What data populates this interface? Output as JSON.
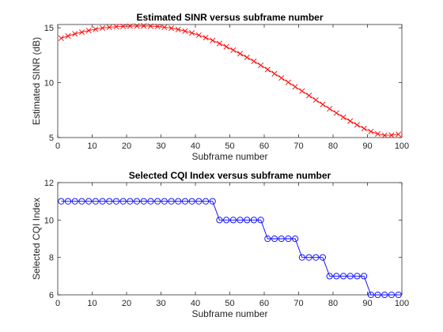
{
  "chart_data": [
    {
      "type": "line",
      "title": "Estimated SINR versus subframe number",
      "xlabel": "Subframe number",
      "ylabel": "Estimated SINR (dB)",
      "xlim": [
        0,
        100
      ],
      "ylim": [
        5,
        15.3
      ],
      "xticks": [
        0,
        10,
        20,
        30,
        40,
        50,
        60,
        70,
        80,
        90,
        100
      ],
      "yticks": [
        5,
        10,
        15
      ],
      "grid": false,
      "series": [
        {
          "color": "#ff0000",
          "marker": "x",
          "line": "solid",
          "x": [
            1,
            3,
            5,
            7,
            9,
            11,
            13,
            15,
            17,
            19,
            21,
            23,
            25,
            27,
            29,
            31,
            33,
            35,
            37,
            39,
            41,
            43,
            45,
            47,
            49,
            51,
            53,
            55,
            57,
            59,
            61,
            63,
            65,
            67,
            69,
            71,
            73,
            75,
            77,
            79,
            81,
            83,
            85,
            87,
            89,
            91,
            93,
            95,
            97,
            99
          ],
          "y": [
            14.05,
            14.25,
            14.45,
            14.6,
            14.75,
            14.88,
            14.98,
            15.05,
            15.1,
            15.13,
            15.15,
            15.16,
            15.17,
            15.15,
            15.12,
            15.05,
            14.97,
            14.85,
            14.7,
            14.53,
            14.33,
            14.1,
            13.85,
            13.57,
            13.28,
            12.97,
            12.64,
            12.3,
            11.95,
            11.58,
            11.2,
            10.82,
            10.43,
            10.03,
            9.63,
            9.23,
            8.83,
            8.42,
            8.02,
            7.62,
            7.23,
            6.85,
            6.5,
            6.15,
            5.82,
            5.55,
            5.33,
            5.2,
            5.22,
            5.3
          ]
        }
      ]
    },
    {
      "type": "line",
      "title": "Selected CQI Index versus subframe number",
      "xlabel": "Subframe number",
      "ylabel": "Selected CQI Index",
      "xlim": [
        0,
        100
      ],
      "ylim": [
        6,
        12
      ],
      "xticks": [
        0,
        10,
        20,
        30,
        40,
        50,
        60,
        70,
        80,
        90,
        100
      ],
      "yticks": [
        6,
        8,
        10,
        12
      ],
      "grid": false,
      "series": [
        {
          "color": "#0000ff",
          "marker": "o",
          "line": "solid",
          "x": [
            1,
            3,
            5,
            7,
            9,
            11,
            13,
            15,
            17,
            19,
            21,
            23,
            25,
            27,
            29,
            31,
            33,
            35,
            37,
            39,
            41,
            43,
            45,
            47,
            49,
            51,
            53,
            55,
            57,
            59,
            61,
            63,
            65,
            67,
            69,
            71,
            73,
            75,
            77,
            79,
            81,
            83,
            85,
            87,
            89,
            91,
            93,
            95,
            97,
            99
          ],
          "y": [
            11,
            11,
            11,
            11,
            11,
            11,
            11,
            11,
            11,
            11,
            11,
            11,
            11,
            11,
            11,
            11,
            11,
            11,
            11,
            11,
            11,
            11,
            11,
            10,
            10,
            10,
            10,
            10,
            10,
            10,
            9,
            9,
            9,
            9,
            9,
            8,
            8,
            8,
            8,
            7,
            7,
            7,
            7,
            7,
            7,
            6,
            6,
            6,
            6,
            6
          ]
        }
      ]
    }
  ]
}
